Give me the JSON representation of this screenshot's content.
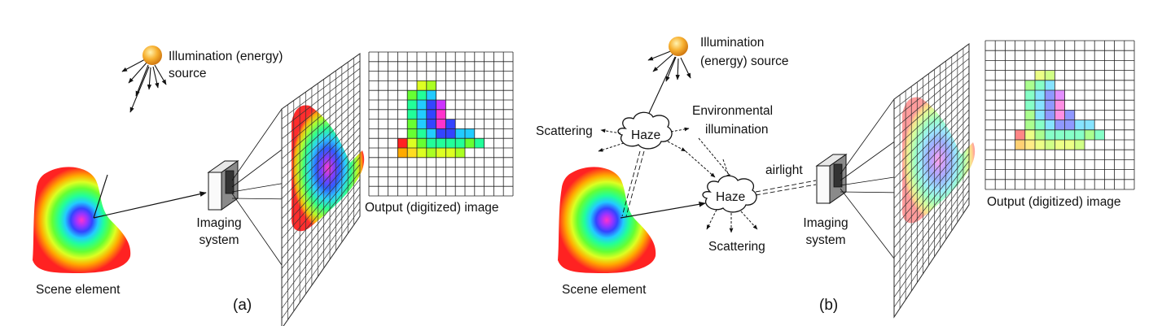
{
  "panel_a": {
    "panel_label": "(a)",
    "illumination_label": [
      "Illumination (energy)",
      "source"
    ],
    "imaging_label": [
      "Imaging",
      "system"
    ],
    "output_label": "Output (digitized) image",
    "scene_label": "Scene element"
  },
  "panel_b": {
    "panel_label": "(b)",
    "illumination_label": [
      "Illumination",
      "(energy) source"
    ],
    "haze_label": "Haze",
    "scattering_label": "Scattering",
    "environmental_label": [
      "Environmental",
      "illumination"
    ],
    "airlight_label": "airlight",
    "imaging_label": [
      "Imaging",
      "system"
    ],
    "output_label": "Output (digitized) image",
    "scene_label": "Scene element"
  },
  "colors": {
    "sun": "#f5a623",
    "line": "#111111",
    "grid": "#222222"
  },
  "icons": [
    "sun-icon",
    "camera-icon",
    "haze-cloud-icon",
    "scene-element-icon",
    "sensor-grid-icon",
    "digitized-image-icon"
  ]
}
